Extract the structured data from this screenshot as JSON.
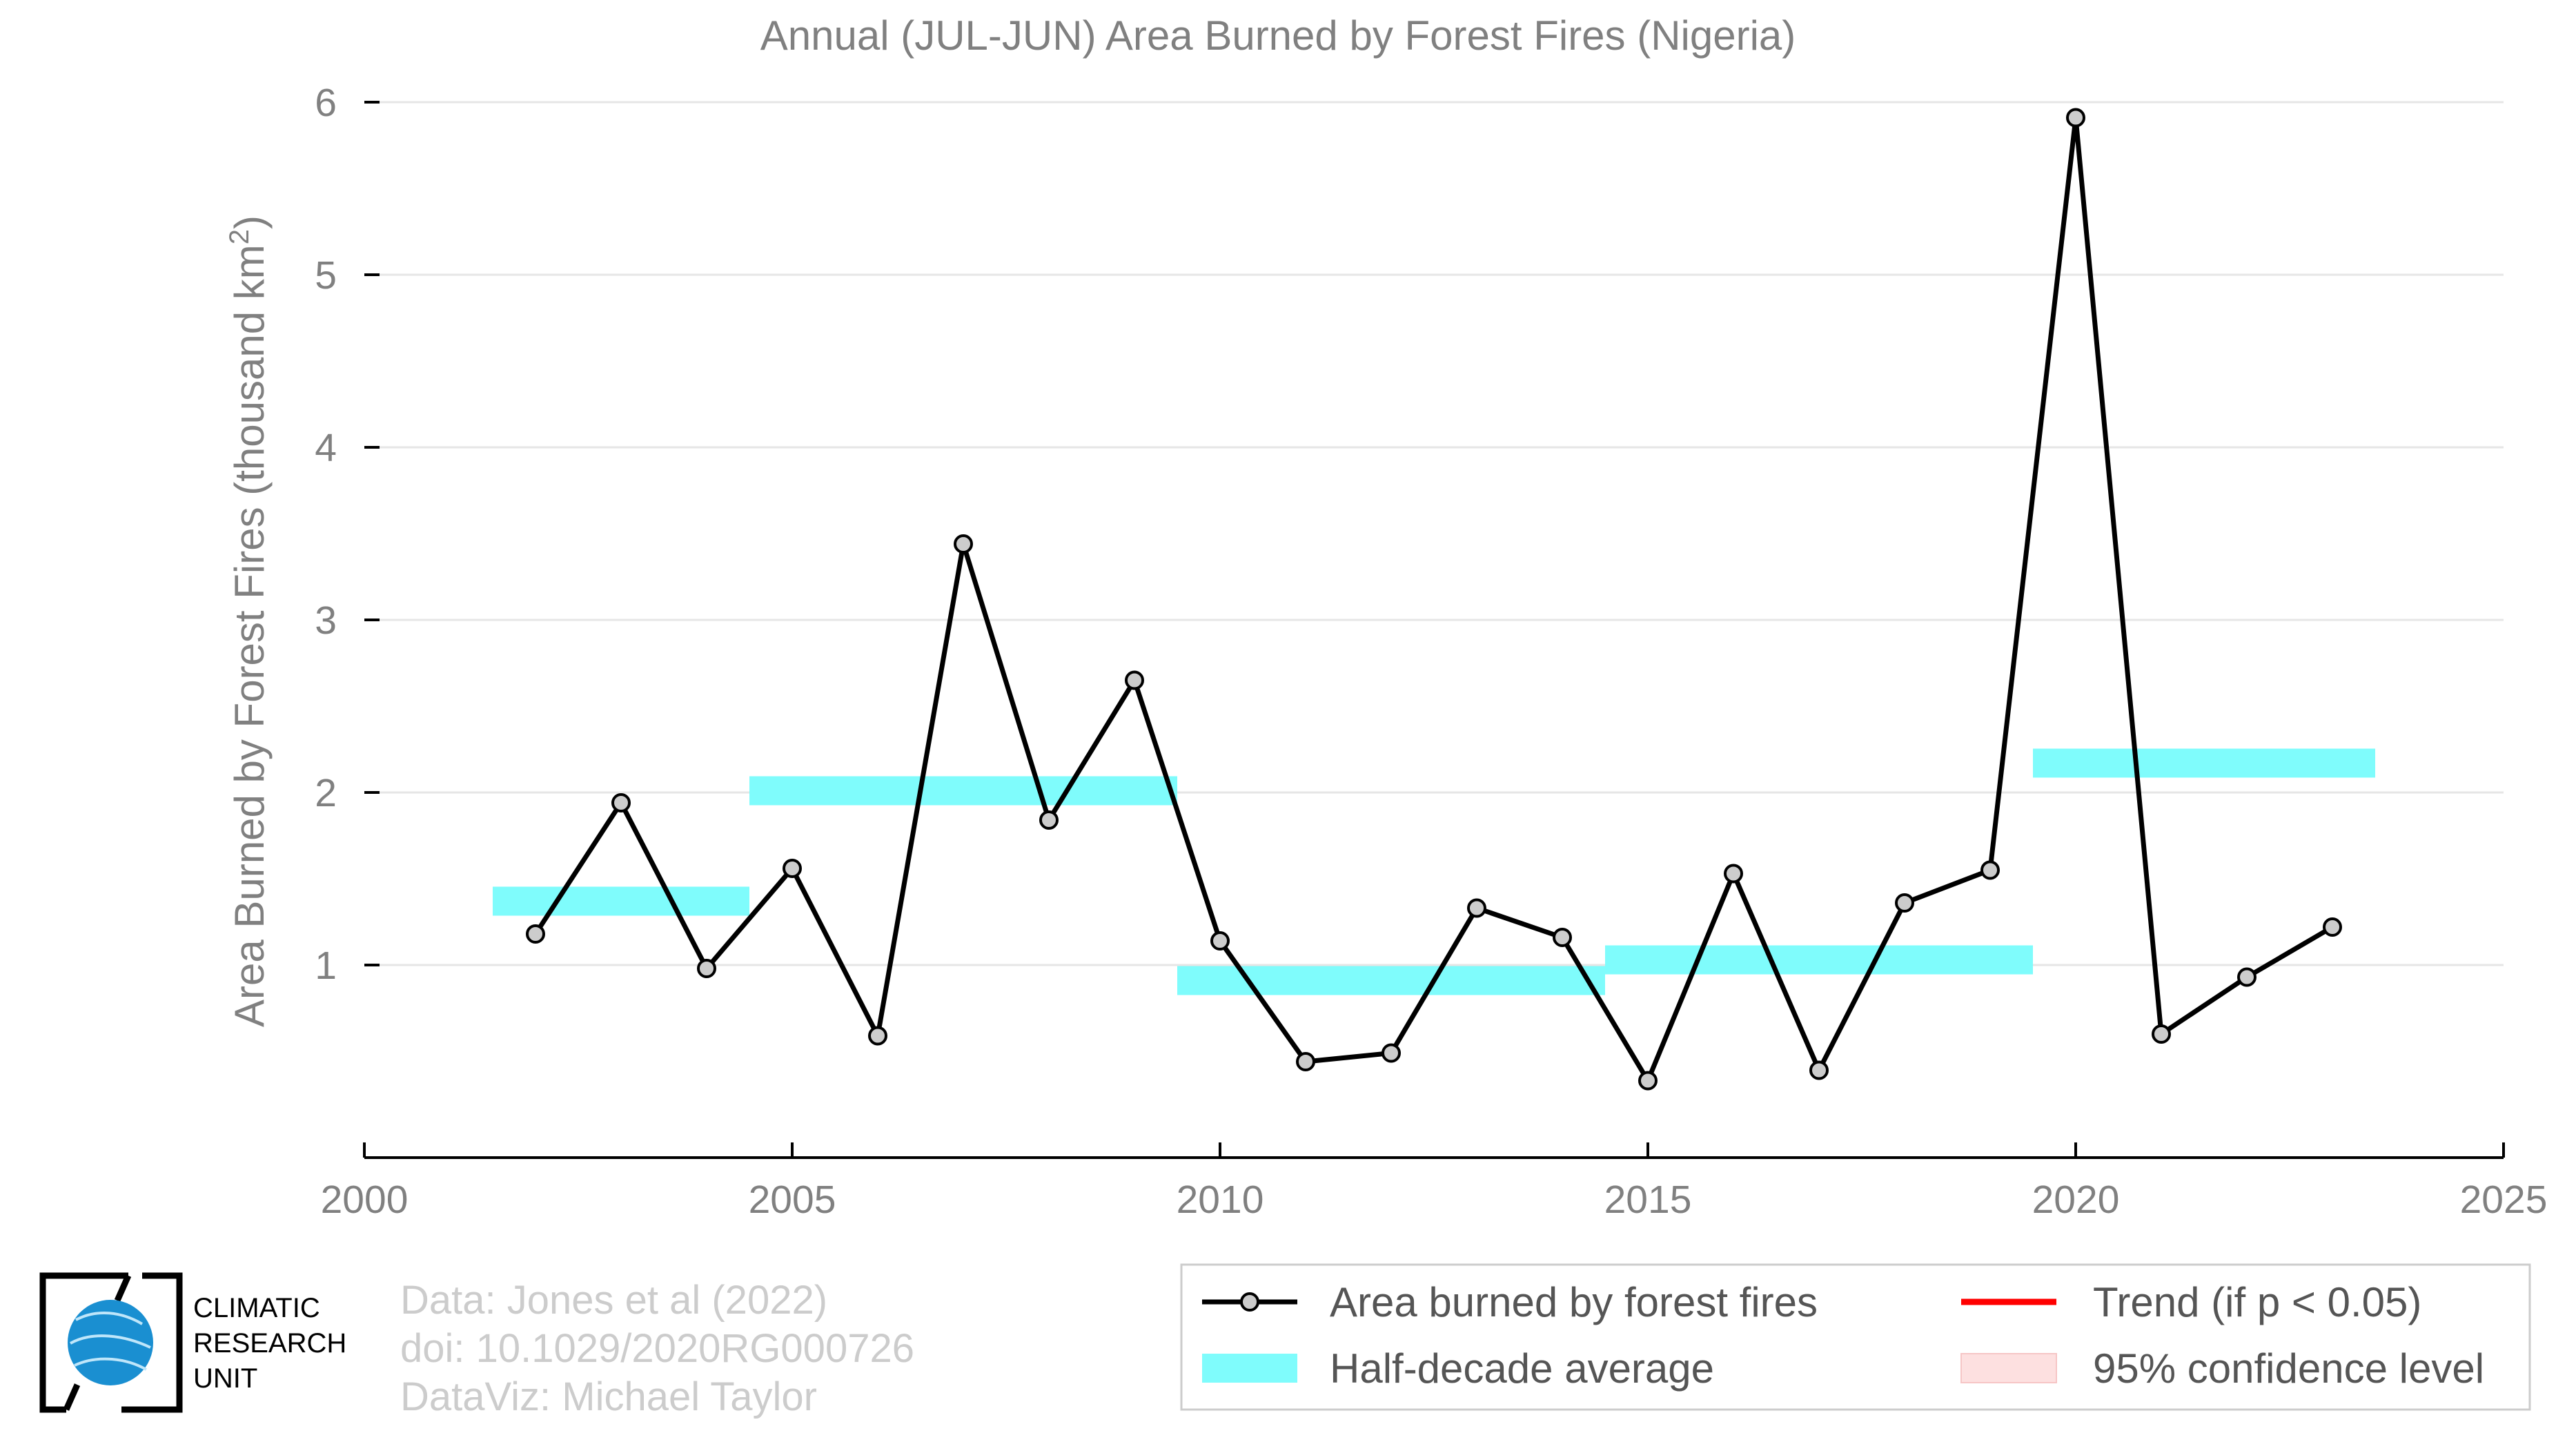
{
  "chart_data": {
    "type": "line",
    "title": "Annual (JUL-JUN) Area Burned by Forest Fires (Nigeria)",
    "xlabel": "",
    "ylabel": "Area Burned by Forest Fires (thousand km",
    "ylabel_superscript": "2",
    "ylabel_close": ")",
    "xlim": [
      2000,
      2025
    ],
    "ylim": [
      0,
      6
    ],
    "xticks": [
      "2000",
      "2005",
      "2010",
      "2015",
      "2020",
      "2025"
    ],
    "yticks": [
      "1",
      "2",
      "3",
      "4",
      "5",
      "6"
    ],
    "grid": true,
    "series": [
      {
        "name": "Area burned by forest fires",
        "color": "#000000",
        "x": [
          2002,
          2003,
          2004,
          2005,
          2006,
          2007,
          2008,
          2009,
          2010,
          2011,
          2012,
          2013,
          2014,
          2015,
          2016,
          2017,
          2018,
          2019,
          2020,
          2021,
          2022,
          2023
        ],
        "y": [
          1.18,
          1.94,
          0.98,
          1.56,
          0.59,
          3.44,
          1.84,
          2.65,
          1.14,
          0.44,
          0.49,
          1.33,
          1.16,
          0.33,
          1.53,
          0.39,
          1.36,
          1.55,
          5.91,
          0.6,
          0.93,
          1.22
        ]
      }
    ],
    "half_decade_average": {
      "name": "Half-decade average",
      "color": "#7ffcfc",
      "segments": [
        {
          "x0": 2001.5,
          "x1": 2004.5,
          "y": 1.37
        },
        {
          "x0": 2004.5,
          "x1": 2009.5,
          "y": 2.01
        },
        {
          "x0": 2009.5,
          "x1": 2014.5,
          "y": 0.91
        },
        {
          "x0": 2014.5,
          "x1": 2019.5,
          "y": 1.03
        },
        {
          "x0": 2019.5,
          "x1": 2023.5,
          "y": 2.17
        }
      ]
    },
    "legend": {
      "placement": "bottom-right",
      "entries": [
        {
          "label": "Area burned by forest fires",
          "kind": "line-marker",
          "color": "#000000"
        },
        {
          "label": "Trend (if p < 0.05)",
          "kind": "line",
          "color": "#ff0000"
        },
        {
          "label": "Half-decade average",
          "kind": "band",
          "color": "#7ffcfc"
        },
        {
          "label": "95% confidence level",
          "kind": "band",
          "color": "#fde0e0"
        }
      ]
    }
  },
  "credits": {
    "line1": "Data: Jones et al (2022)",
    "line2": "doi: 10.1029/2020RG000726",
    "line3": "DataViz: Michael Taylor"
  },
  "logo": {
    "line1": "CLIMATIC",
    "line2": "RESEARCH",
    "line3": "UNIT"
  }
}
